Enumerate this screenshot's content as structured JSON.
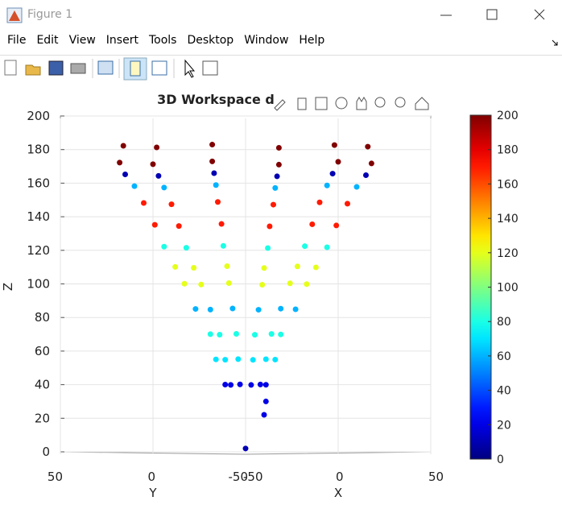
{
  "window": {
    "title": "Figure 1",
    "menu": [
      "File",
      "Edit",
      "View",
      "Insert",
      "Tools",
      "Desktop",
      "Window",
      "Help"
    ]
  },
  "chart_data": {
    "type": "scatter3d",
    "title": "3D Workspace d",
    "xlabel": "X",
    "ylabel": "Y",
    "zlabel": "Z",
    "xlim": [
      -50,
      50
    ],
    "ylim": [
      -50,
      50
    ],
    "zlim": [
      0,
      200
    ],
    "xticks": [
      -50,
      0,
      50
    ],
    "yticks": [
      -50,
      0,
      50
    ],
    "zticks": [
      0,
      20,
      40,
      60,
      80,
      100,
      120,
      140,
      160,
      180,
      200
    ],
    "grid": true,
    "colormap": "jet",
    "clim": [
      0,
      200
    ],
    "cticks": [
      0,
      20,
      40,
      60,
      80,
      100,
      120,
      140,
      160,
      180,
      200
    ],
    "x": [
      0,
      7,
      6,
      8,
      4,
      -4,
      -8,
      -4,
      4,
      11,
      6,
      -6,
      -11,
      -6,
      6,
      14,
      7,
      -7,
      -14,
      -7,
      7,
      19,
      10,
      -10,
      -19,
      -10,
      10,
      24,
      12,
      -12,
      -24,
      -12,
      12,
      28,
      14,
      -14,
      -28,
      -14,
      14,
      32,
      16,
      -16,
      -32,
      -16,
      16,
      36,
      18,
      -18,
      -36,
      -18,
      18,
      40,
      20,
      -20,
      -40,
      -20,
      20,
      44,
      22,
      -22,
      -44,
      -22,
      22,
      47,
      24,
      -24,
      -47,
      -24,
      24,
      50,
      25,
      -25,
      -50,
      -25,
      25,
      48,
      24,
      -24,
      -48,
      -24,
      24
    ],
    "y": [
      0,
      -3,
      -5,
      0,
      7,
      7,
      0,
      -7,
      -7,
      0,
      10,
      10,
      0,
      -10,
      -10,
      0,
      12,
      12,
      0,
      -12,
      -12,
      0,
      17,
      17,
      0,
      -17,
      -17,
      0,
      21,
      21,
      0,
      -21,
      -21,
      0,
      24,
      24,
      0,
      -24,
      -24,
      0,
      28,
      28,
      0,
      -28,
      -28,
      0,
      31,
      31,
      0,
      -31,
      -31,
      0,
      35,
      35,
      0,
      -35,
      -35,
      0,
      38,
      38,
      0,
      -38,
      -38,
      0,
      41,
      41,
      0,
      -41,
      -41,
      0,
      43,
      43,
      0,
      -43,
      -43,
      0,
      42,
      42,
      0,
      -42,
      -42
    ],
    "z": [
      2,
      22,
      30,
      40,
      40,
      40,
      40,
      40,
      40,
      55,
      55,
      55,
      55,
      55,
      55,
      70,
      70,
      70,
      70,
      70,
      70,
      85,
      85,
      85,
      85,
      85,
      85,
      100,
      100,
      100,
      100,
      100,
      100,
      110,
      110,
      110,
      110,
      110,
      110,
      122,
      122,
      122,
      122,
      122,
      122,
      135,
      135,
      135,
      135,
      135,
      135,
      148,
      148,
      148,
      148,
      148,
      148,
      158,
      158,
      158,
      158,
      158,
      158,
      165,
      165,
      165,
      165,
      165,
      165,
      172,
      172,
      172,
      172,
      172,
      172,
      182,
      182,
      182,
      182,
      182,
      182
    ],
    "c": [
      10,
      20,
      20,
      20,
      20,
      20,
      20,
      20,
      20,
      70,
      70,
      70,
      70,
      70,
      70,
      80,
      80,
      80,
      80,
      80,
      80,
      60,
      60,
      60,
      60,
      60,
      60,
      120,
      120,
      120,
      120,
      120,
      120,
      120,
      120,
      120,
      120,
      120,
      120,
      80,
      80,
      80,
      80,
      80,
      80,
      170,
      170,
      170,
      170,
      170,
      170,
      170,
      170,
      170,
      170,
      170,
      170,
      60,
      60,
      60,
      60,
      60,
      60,
      10,
      10,
      10,
      10,
      10,
      10,
      200,
      200,
      200,
      200,
      200,
      200,
      200,
      200,
      200,
      200,
      200,
      200
    ]
  }
}
